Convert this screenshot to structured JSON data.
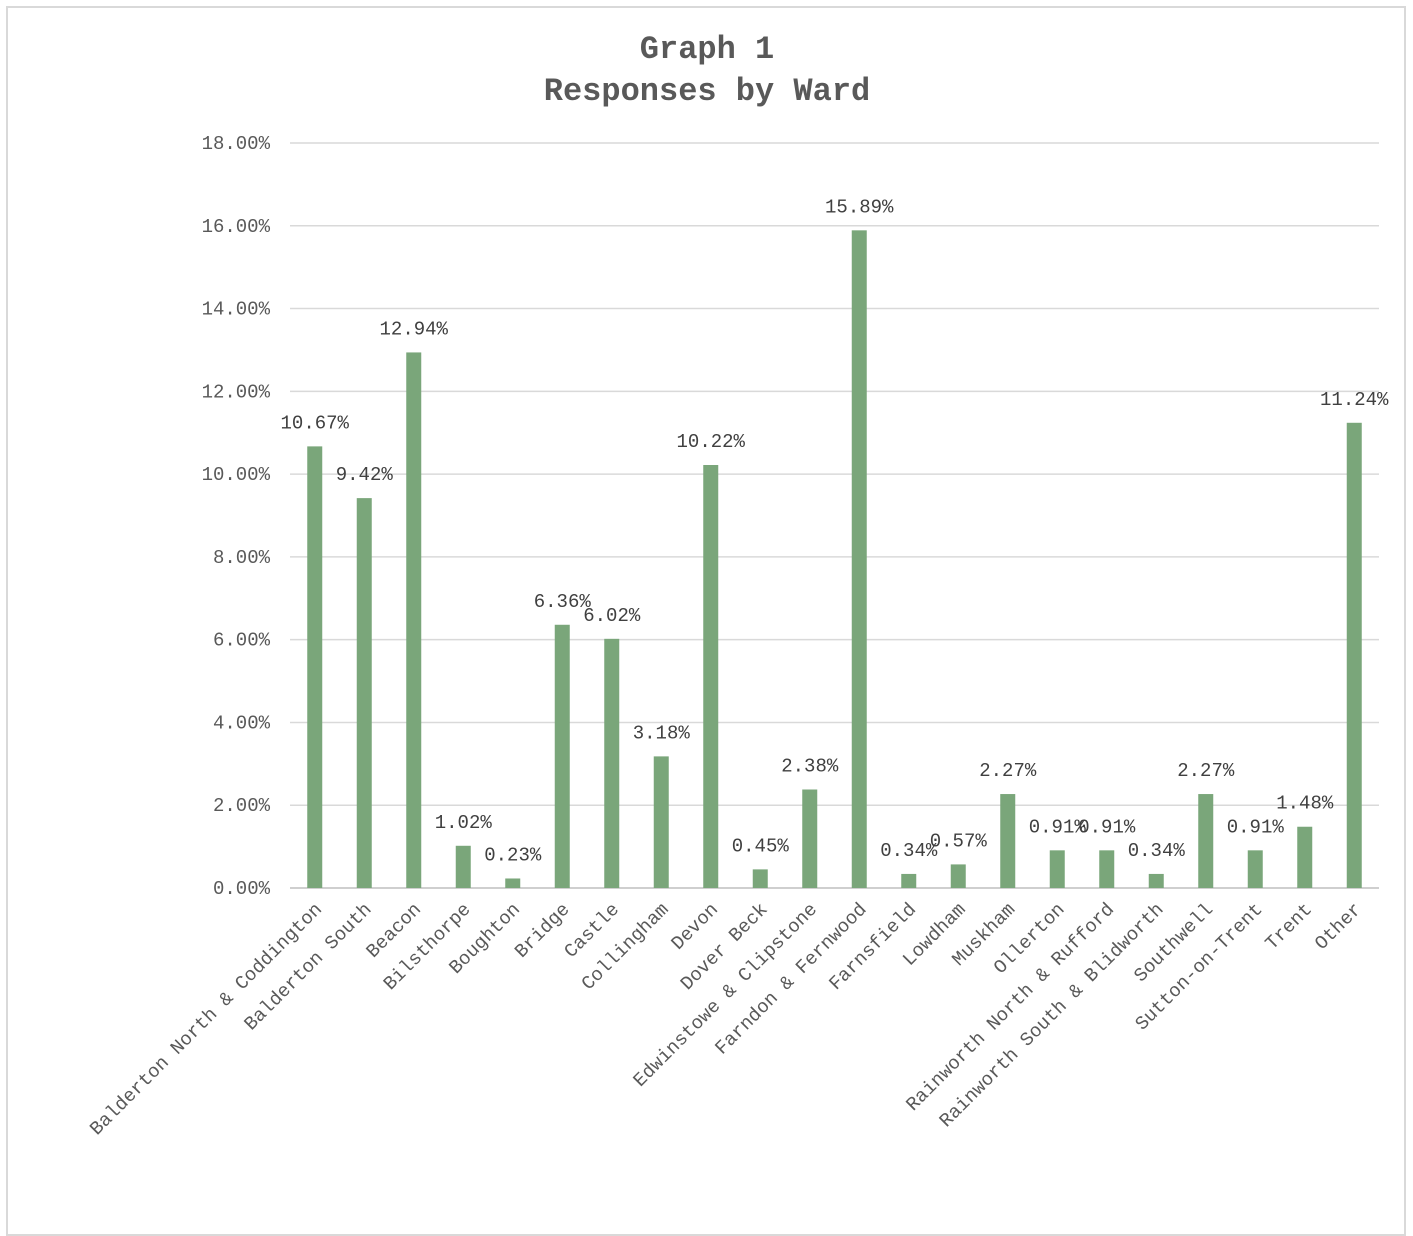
{
  "chart_data": {
    "type": "bar",
    "title": "Graph 1",
    "subtitle": "Responses by Ward",
    "xlabel": "",
    "ylabel": "",
    "ylim": [
      0,
      18
    ],
    "y_ticks": [
      "0.00%",
      "2.00%",
      "4.00%",
      "6.00%",
      "8.00%",
      "10.00%",
      "12.00%",
      "14.00%",
      "16.00%",
      "18.00%"
    ],
    "grid": true,
    "legend": "none",
    "bar_color": "#7aa67a",
    "categories": [
      "Balderton North & Coddington",
      "Balderton South",
      "Beacon",
      "Bilsthorpe",
      "Boughton",
      "Bridge",
      "Castle",
      "Collingham",
      "Devon",
      "Dover Beck",
      "Edwinstowe & Clipstone",
      "Farndon & Fernwood",
      "Farnsfield",
      "Lowdham",
      "Muskham",
      "Ollerton",
      "Rainworth North & Rufford",
      "Rainworth South & Blidworth",
      "Southwell",
      "Sutton-on-Trent",
      "Trent",
      "Other"
    ],
    "values": [
      10.67,
      9.42,
      12.94,
      1.02,
      0.23,
      6.36,
      6.02,
      3.18,
      10.22,
      0.45,
      2.38,
      15.89,
      0.34,
      0.57,
      2.27,
      0.91,
      0.91,
      0.34,
      2.27,
      0.91,
      1.48,
      11.24
    ],
    "data_labels": [
      "10.67%",
      "9.42%",
      "12.94%",
      "1.02%",
      "0.23%",
      "6.36%",
      "6.02%",
      "3.18%",
      "10.22%",
      "0.45%",
      "2.38%",
      "15.89%",
      "0.34%",
      "0.57%",
      "2.27%",
      "0.91%",
      "0.91%",
      "0.34%",
      "2.27%",
      "0.91%",
      "1.48%",
      "11.24%"
    ]
  }
}
